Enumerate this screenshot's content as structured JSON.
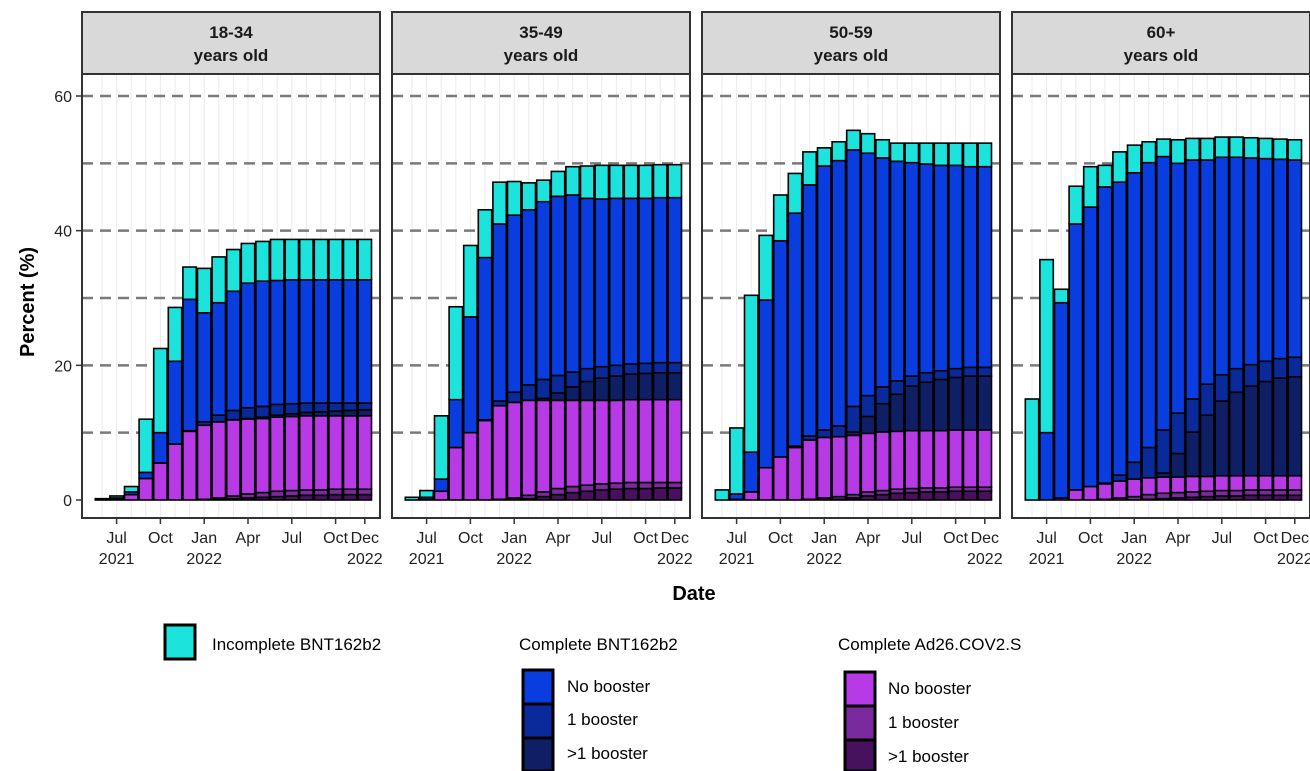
{
  "chart_data": {
    "type": "bar",
    "stacked": true,
    "xlabel": "Date",
    "ylabel": "Percent (%)",
    "ylim": [
      0,
      62
    ],
    "y_ticks": [
      0,
      20,
      40,
      60
    ],
    "grid": true,
    "x_tick_labels": [
      "Jul\n2021",
      "Oct",
      "Jan\n2022",
      "Apr",
      "Jul",
      "Oct",
      "Dec\n2022"
    ],
    "months": [
      "2021-06",
      "2021-07",
      "2021-08",
      "2021-09",
      "2021-10",
      "2021-11",
      "2021-12",
      "2022-01",
      "2022-02",
      "2022-03",
      "2022-04",
      "2022-05",
      "2022-06",
      "2022-07",
      "2022-08",
      "2022-09",
      "2022-10",
      "2022-11",
      "2022-12"
    ],
    "series_order": [
      "ad26_more",
      "ad26_one",
      "ad26_none",
      "bnt_more",
      "bnt_one",
      "bnt_none",
      "bnt_incomplete"
    ],
    "series_colors": {
      "ad26_more": "#4a1060",
      "ad26_one": "#7b2a9e",
      "ad26_none": "#b83ae6",
      "bnt_more": "#0e1f66",
      "bnt_one": "#0a2a9c",
      "bnt_none": "#0a3de0",
      "bnt_incomplete": "#1de3dd"
    },
    "panels": [
      {
        "label_line1": "18-34",
        "label_line2": "years old",
        "series": {
          "ad26_more": [
            0,
            0,
            0,
            0,
            0,
            0,
            0,
            0,
            0.1,
            0.2,
            0.3,
            0.4,
            0.5,
            0.6,
            0.7,
            0.7,
            0.8,
            0.8,
            0.8
          ],
          "ad26_one": [
            0,
            0,
            0,
            0,
            0,
            0,
            0,
            0.1,
            0.2,
            0.4,
            0.6,
            0.7,
            0.8,
            0.8,
            0.8,
            0.8,
            0.8,
            0.8,
            0.8
          ],
          "ad26_none": [
            0,
            0.1,
            0.8,
            3.2,
            5.5,
            8.3,
            10.2,
            11.0,
            11.3,
            11.3,
            11.1,
            11.0,
            11.0,
            11.0,
            11.0,
            11.0,
            10.9,
            10.9,
            10.9
          ],
          "bnt_more": [
            0,
            0,
            0,
            0,
            0,
            0,
            0,
            0,
            0,
            0,
            0.1,
            0.2,
            0.3,
            0.4,
            0.5,
            0.6,
            0.7,
            0.8,
            0.9
          ],
          "bnt_one": [
            0,
            0,
            0,
            0,
            0,
            0,
            0.1,
            0.5,
            1.0,
            1.4,
            1.6,
            1.6,
            1.6,
            1.5,
            1.4,
            1.3,
            1.2,
            1.1,
            1.0
          ],
          "bnt_none": [
            0,
            0.2,
            0.4,
            0.9,
            4.5,
            12.3,
            19.5,
            16.2,
            16.7,
            17.7,
            18.5,
            18.6,
            18.4,
            18.4,
            18.3,
            18.3,
            18.3,
            18.3,
            18.3
          ],
          "bnt_incomplete": [
            0.2,
            0.3,
            0.8,
            7.9,
            12.5,
            8.0,
            4.8,
            6.6,
            6.8,
            6.2,
            5.9,
            5.9,
            6.1,
            6.0,
            6.0,
            6.0,
            6.0,
            6.0,
            6.0
          ]
        }
      },
      {
        "label_line1": "35-49",
        "label_line2": "years old",
        "series": {
          "ad26_more": [
            0,
            0,
            0,
            0,
            0,
            0,
            0,
            0,
            0.2,
            0.5,
            0.8,
            1.1,
            1.3,
            1.5,
            1.6,
            1.7,
            1.7,
            1.8,
            1.8
          ],
          "ad26_one": [
            0,
            0,
            0,
            0,
            0,
            0,
            0.1,
            0.3,
            0.5,
            0.7,
            0.9,
            0.9,
            0.9,
            0.9,
            0.9,
            0.9,
            0.9,
            0.8,
            0.8
          ],
          "ad26_none": [
            0,
            0.1,
            1.3,
            7.8,
            10.0,
            11.8,
            13.9,
            14.2,
            14.1,
            13.6,
            13.1,
            12.8,
            12.6,
            12.4,
            12.3,
            12.3,
            12.3,
            12.3,
            12.3
          ],
          "bnt_more": [
            0,
            0,
            0,
            0,
            0,
            0,
            0,
            0,
            0,
            0.3,
            1.1,
            2.0,
            2.8,
            3.3,
            3.6,
            3.8,
            3.9,
            4.0,
            4.0
          ],
          "bnt_one": [
            0,
            0,
            0,
            0,
            0,
            0.1,
            0.7,
            1.5,
            2.3,
            2.8,
            2.6,
            2.2,
            1.9,
            1.7,
            1.6,
            1.5,
            1.5,
            1.5,
            1.5
          ],
          "bnt_none": [
            0,
            0.3,
            1.8,
            7.1,
            17.2,
            24.1,
            26.3,
            26.3,
            26.0,
            26.4,
            26.6,
            26.3,
            25.3,
            24.9,
            24.8,
            24.6,
            24.5,
            24.5,
            24.5
          ],
          "bnt_incomplete": [
            0.4,
            1.0,
            9.4,
            13.8,
            10.6,
            7.1,
            6.2,
            5.0,
            4.0,
            3.2,
            3.7,
            4.2,
            4.8,
            5.0,
            4.9,
            4.9,
            4.9,
            4.9,
            4.9
          ]
        }
      },
      {
        "label_line1": "50-59",
        "label_line2": "years old",
        "series": {
          "ad26_more": [
            0,
            0,
            0,
            0,
            0,
            0,
            0,
            0,
            0.1,
            0.3,
            0.6,
            0.8,
            1.0,
            1.1,
            1.2,
            1.2,
            1.3,
            1.3,
            1.3
          ],
          "ad26_one": [
            0,
            0,
            0,
            0,
            0,
            0,
            0.1,
            0.3,
            0.4,
            0.5,
            0.6,
            0.6,
            0.6,
            0.6,
            0.6,
            0.6,
            0.6,
            0.6,
            0.6
          ],
          "ad26_none": [
            0,
            0.1,
            1.2,
            4.8,
            6.4,
            7.8,
            8.8,
            9.0,
            8.9,
            8.8,
            8.7,
            8.7,
            8.6,
            8.6,
            8.5,
            8.5,
            8.5,
            8.5,
            8.5
          ],
          "bnt_more": [
            0,
            0,
            0,
            0,
            0,
            0,
            0,
            0,
            0,
            0.5,
            2.5,
            4.2,
            5.5,
            6.6,
            7.2,
            7.6,
            7.8,
            8.0,
            8.0
          ],
          "bnt_one": [
            0,
            0,
            0,
            0,
            0,
            0.2,
            0.6,
            1.1,
            1.6,
            3.8,
            3.1,
            2.5,
            2.0,
            1.5,
            1.4,
            1.3,
            1.3,
            1.3,
            1.3
          ],
          "bnt_none": [
            0,
            0.8,
            5.9,
            24.9,
            32.1,
            34.6,
            37.3,
            39.2,
            39.4,
            38.1,
            36.0,
            34.0,
            32.6,
            31.7,
            31.0,
            30.5,
            30.2,
            29.8,
            29.8
          ],
          "bnt_incomplete": [
            1.5,
            9.8,
            23.3,
            9.6,
            6.8,
            5.9,
            4.9,
            2.7,
            2.8,
            2.9,
            2.9,
            2.7,
            2.7,
            2.9,
            3.1,
            3.3,
            3.3,
            3.5,
            3.5
          ]
        }
      },
      {
        "label_line1": "60+",
        "label_line2": "years old",
        "series": {
          "ad26_more": [
            0,
            0,
            0,
            0,
            0,
            0,
            0,
            0,
            0.1,
            0.2,
            0.3,
            0.4,
            0.5,
            0.6,
            0.6,
            0.7,
            0.7,
            0.7,
            0.7
          ],
          "ad26_one": [
            0,
            0,
            0,
            0,
            0,
            0.1,
            0.3,
            0.5,
            0.7,
            0.8,
            0.8,
            0.8,
            0.8,
            0.8,
            0.8,
            0.8,
            0.8,
            0.8,
            0.8
          ],
          "ad26_none": [
            0,
            0,
            0.3,
            1.5,
            2.0,
            2.3,
            2.5,
            2.6,
            2.5,
            2.4,
            2.3,
            2.3,
            2.2,
            2.2,
            2.2,
            2.1,
            2.1,
            2.1,
            2.1
          ],
          "bnt_more": [
            0,
            0,
            0,
            0,
            0,
            0,
            0,
            0,
            0,
            0.6,
            3.5,
            6.6,
            9.1,
            11.1,
            12.4,
            13.3,
            14.0,
            14.5,
            14.7
          ],
          "bnt_one": [
            0,
            0,
            0,
            0,
            0,
            0.1,
            0.9,
            2.5,
            4.5,
            6.4,
            6.0,
            4.9,
            4.6,
            3.9,
            3.5,
            3.2,
            3.0,
            2.9,
            2.9
          ],
          "bnt_none": [
            0,
            10.0,
            29.0,
            39.5,
            41.5,
            44.0,
            43.5,
            43.0,
            42.3,
            40.6,
            37.1,
            35.5,
            33.3,
            32.3,
            31.4,
            30.7,
            30.1,
            29.6,
            29.3
          ],
          "bnt_incomplete": [
            15.0,
            25.7,
            2.0,
            5.6,
            6.0,
            3.2,
            4.5,
            4.1,
            3.1,
            2.6,
            3.5,
            3.2,
            3.2,
            3.0,
            3.0,
            3.0,
            3.0,
            3.0,
            3.0
          ]
        }
      }
    ]
  },
  "legend": {
    "incomplete_label": "Incomplete BNT162b2",
    "bnt_title": "Complete BNT162b2",
    "ad26_title": "Complete Ad26.COV2.S",
    "no_booster": "No booster",
    "one_booster": "1 booster",
    "more_booster": ">1 booster"
  }
}
